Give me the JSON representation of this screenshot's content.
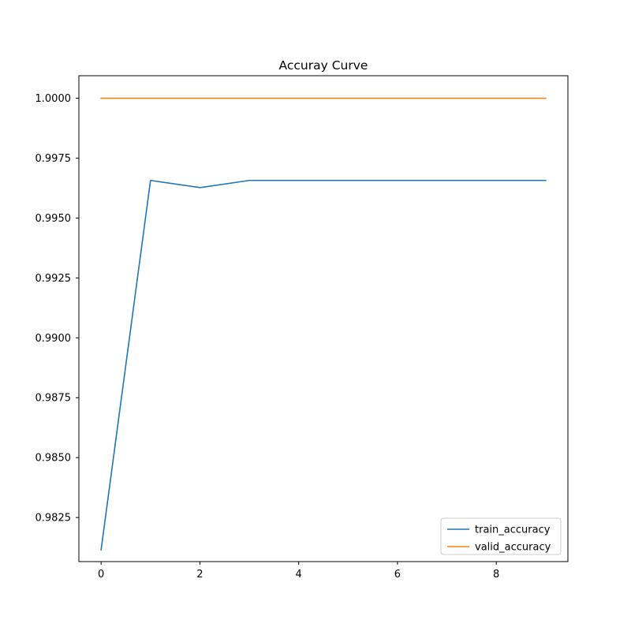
{
  "chart_data": {
    "type": "line",
    "title": "Accuray Curve",
    "xlabel": "",
    "ylabel": "",
    "x": [
      0,
      1,
      2,
      3,
      4,
      5,
      6,
      7,
      8,
      9
    ],
    "xlim": [
      -0.45,
      9.45
    ],
    "ylim": [
      0.98066,
      1.00094
    ],
    "x_ticks": [
      0,
      2,
      4,
      6,
      8
    ],
    "x_tick_labels": [
      "0",
      "2",
      "4",
      "6",
      "8"
    ],
    "y_ticks": [
      0.9825,
      0.985,
      0.9875,
      0.99,
      0.9925,
      0.995,
      0.9975,
      1.0
    ],
    "y_tick_labels": [
      "0.9825",
      "0.9850",
      "0.9875",
      "0.9900",
      "0.9925",
      "0.9950",
      "0.9975",
      "1.0000"
    ],
    "grid": false,
    "legend_position": "lower-right",
    "series": [
      {
        "name": "train_accuracy",
        "color": "#1f77b4",
        "values": [
          0.98115,
          0.99657,
          0.99627,
          0.99657,
          0.99657,
          0.99657,
          0.99657,
          0.99657,
          0.99657,
          0.99657
        ]
      },
      {
        "name": "valid_accuracy",
        "color": "#ff7f0e",
        "values": [
          1.0,
          1.0,
          1.0,
          1.0,
          1.0,
          1.0,
          1.0,
          1.0,
          1.0,
          1.0
        ]
      }
    ]
  }
}
